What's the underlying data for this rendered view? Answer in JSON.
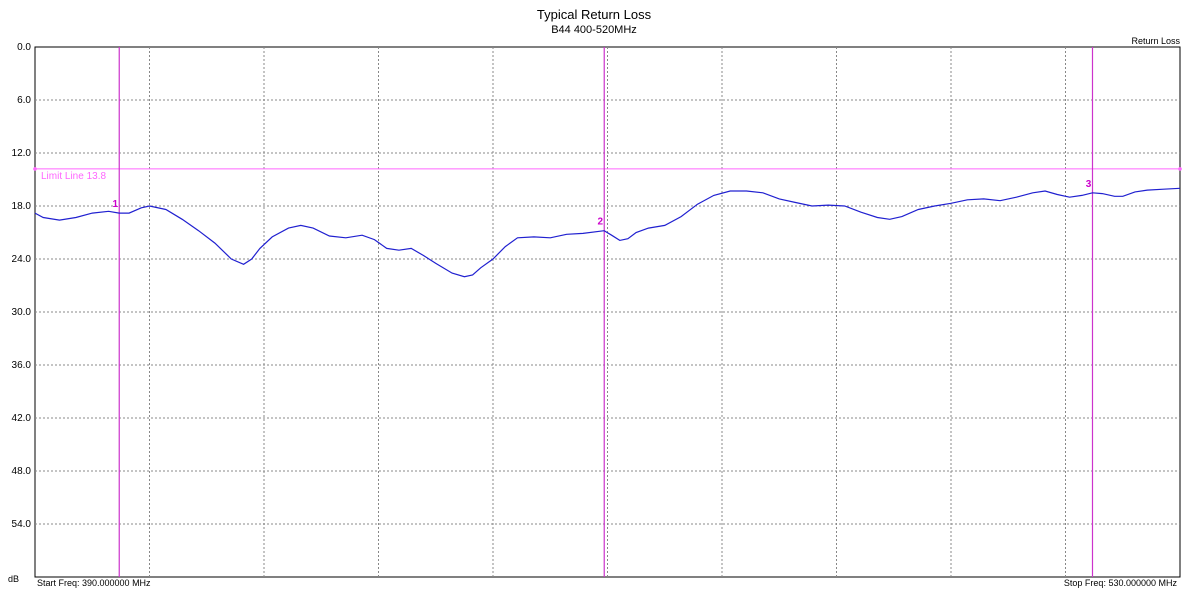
{
  "chart_data": {
    "type": "line",
    "title": "Typical Return Loss",
    "subtitle": "B44  400-520MHz",
    "ylabel": "dB",
    "series_label": "Return Loss",
    "start_label": "Start Freq: 390.000000 MHz",
    "stop_label": "Stop Freq: 530.000000 MHz",
    "xlim": [
      390,
      530
    ],
    "ylim": [
      0,
      60
    ],
    "y_inverted": true,
    "y_ticks": [
      "0.0",
      "6.0",
      "12.0",
      "18.0",
      "24.0",
      "30.0",
      "36.0",
      "42.0",
      "48.0",
      "54.0"
    ],
    "x_grid_count": 10,
    "grid": true,
    "limit_line": {
      "label": "Limit Line 13.8",
      "value": 13.8
    },
    "markers": [
      {
        "label": "1",
        "x": 400.3,
        "y": 18.8
      },
      {
        "label": "2",
        "x": 459.6,
        "y": 20.8
      },
      {
        "label": "3",
        "x": 519.3,
        "y": 16.5
      }
    ],
    "series": [
      {
        "x": [
          390.0,
          391.0,
          393.0,
          395.0,
          397.0,
          399.0,
          400.3,
          401.5,
          403.0,
          404.0,
          406.0,
          408.0,
          410.0,
          412.0,
          414.0,
          415.5,
          416.5,
          417.5,
          419.0,
          421.0,
          422.5,
          424.0,
          426.0,
          428.0,
          430.0,
          431.5,
          433.0,
          434.5,
          436.0,
          437.5,
          439.0,
          441.0,
          442.5,
          443.5,
          444.5,
          446.0,
          447.5,
          449.0,
          451.0,
          453.0,
          455.0,
          457.0,
          459.6,
          460.5,
          461.5,
          462.5,
          463.5,
          465.0,
          467.0,
          469.0,
          471.0,
          473.0,
          475.0,
          477.0,
          479.0,
          481.0,
          483.0,
          485.0,
          487.0,
          489.0,
          491.0,
          493.0,
          494.5,
          496.0,
          498.0,
          500.0,
          502.0,
          504.0,
          506.0,
          508.0,
          510.0,
          512.0,
          513.5,
          515.0,
          516.5,
          518.0,
          519.3,
          520.5,
          522.0,
          523.0,
          524.5,
          526.0,
          528.0,
          530.0
        ],
        "values": [
          18.8,
          19.3,
          19.6,
          19.3,
          18.8,
          18.6,
          18.8,
          18.8,
          18.2,
          18.0,
          18.4,
          19.5,
          20.8,
          22.2,
          24.0,
          24.6,
          24.0,
          22.8,
          21.5,
          20.5,
          20.2,
          20.5,
          21.4,
          21.6,
          21.3,
          21.8,
          22.8,
          23.0,
          22.8,
          23.6,
          24.5,
          25.6,
          26.0,
          25.8,
          25.0,
          24.0,
          22.6,
          21.6,
          21.5,
          21.6,
          21.2,
          21.1,
          20.8,
          21.3,
          21.9,
          21.7,
          21.0,
          20.5,
          20.2,
          19.2,
          17.8,
          16.8,
          16.3,
          16.3,
          16.5,
          17.2,
          17.6,
          18.0,
          17.9,
          18.0,
          18.7,
          19.3,
          19.5,
          19.2,
          18.4,
          18.0,
          17.7,
          17.3,
          17.2,
          17.4,
          17.0,
          16.5,
          16.3,
          16.7,
          17.0,
          16.8,
          16.5,
          16.6,
          16.9,
          16.9,
          16.4,
          16.2,
          16.1,
          16.0
        ]
      }
    ]
  }
}
